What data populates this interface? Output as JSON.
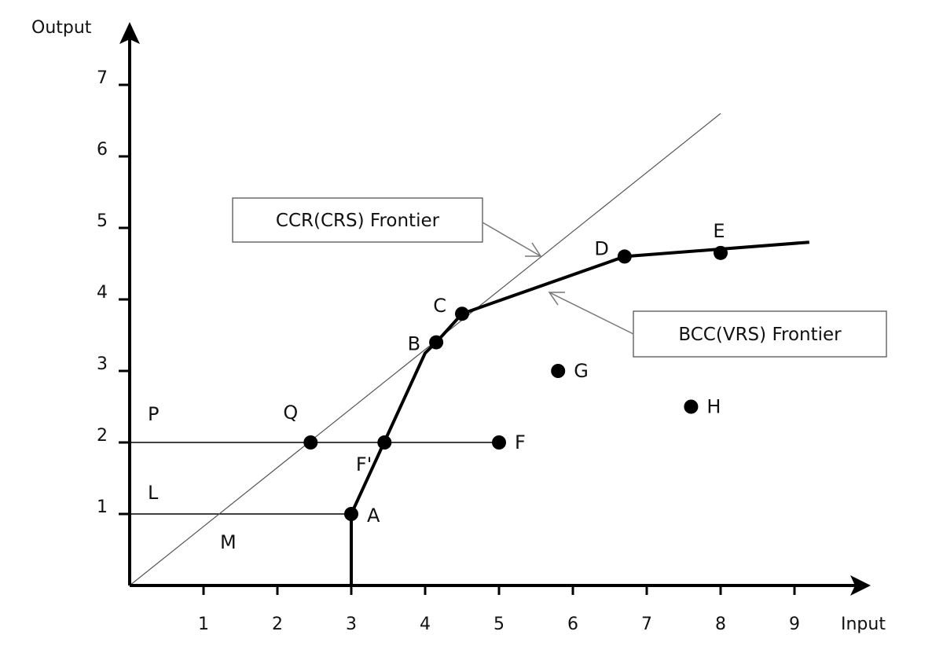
{
  "chart_data": {
    "type": "line",
    "xlabel": "Input",
    "ylabel": "Output",
    "xlim": [
      0,
      9.5
    ],
    "ylim": [
      0,
      7.7
    ],
    "x_ticks": [
      "1",
      "2",
      "3",
      "4",
      "5",
      "6",
      "7",
      "8",
      "9"
    ],
    "y_ticks": [
      "1",
      "2",
      "3",
      "4",
      "5",
      "6",
      "7"
    ],
    "grid": false,
    "ccr_frontier": {
      "label": "CCR(CRS) Frontier",
      "points": [
        [
          0,
          0
        ],
        [
          8,
          6.6
        ]
      ]
    },
    "bcc_frontier": {
      "label": "BCC(VRS) Frontier",
      "points": [
        [
          3,
          0
        ],
        [
          3,
          1
        ],
        [
          4,
          3.25
        ],
        [
          4.15,
          3.4
        ],
        [
          4.5,
          3.8
        ],
        [
          6.7,
          4.6
        ],
        [
          9.2,
          4.8
        ]
      ]
    },
    "reference_lines": [
      {
        "from": [
          0,
          1
        ],
        "to": [
          3,
          1
        ]
      },
      {
        "from": [
          0,
          2
        ],
        "to": [
          5,
          2
        ]
      }
    ],
    "points": [
      {
        "label": "A",
        "x": 3.0,
        "y": 1.0
      },
      {
        "label": "B",
        "x": 4.15,
        "y": 3.4
      },
      {
        "label": "C",
        "x": 4.5,
        "y": 3.8
      },
      {
        "label": "D",
        "x": 6.7,
        "y": 4.6
      },
      {
        "label": "E",
        "x": 8.0,
        "y": 4.65
      },
      {
        "label": "F",
        "x": 5.0,
        "y": 2.0
      },
      {
        "label": "F'",
        "x": 3.45,
        "y": 2.0
      },
      {
        "label": "G",
        "x": 5.8,
        "y": 3.0
      },
      {
        "label": "H",
        "x": 7.6,
        "y": 2.5
      },
      {
        "label": "Q",
        "x": 2.45,
        "y": 2.0
      }
    ],
    "region_labels": [
      "P",
      "L",
      "M"
    ]
  }
}
